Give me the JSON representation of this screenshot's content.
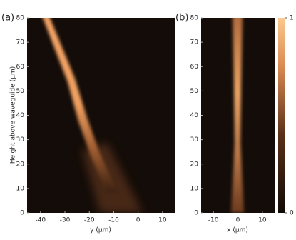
{
  "chart_data": [
    {
      "type": "heatmap",
      "panel_label": "(a)",
      "x_label": "y (μm)",
      "y_label": "Height above waveguide (μm)",
      "xlim": [
        -45.5,
        15
      ],
      "ylim": [
        0,
        80
      ],
      "xticks": [
        -40,
        -30,
        -20,
        -10,
        0,
        10
      ],
      "yticks": [
        0,
        10,
        20,
        30,
        40,
        50,
        60,
        70,
        80
      ]
    },
    {
      "type": "heatmap",
      "panel_label": "(b)",
      "x_label": "x (μm)",
      "xlim": [
        -15,
        15
      ],
      "ylim": [
        0,
        80
      ],
      "xticks": [
        -10,
        0,
        10
      ],
      "yticks": [
        0,
        10,
        20,
        30,
        40,
        50,
        60,
        70,
        80
      ],
      "colorbar_lim": [
        0,
        1
      ],
      "colorbar_ticks": [
        0,
        1
      ]
    }
  ]
}
